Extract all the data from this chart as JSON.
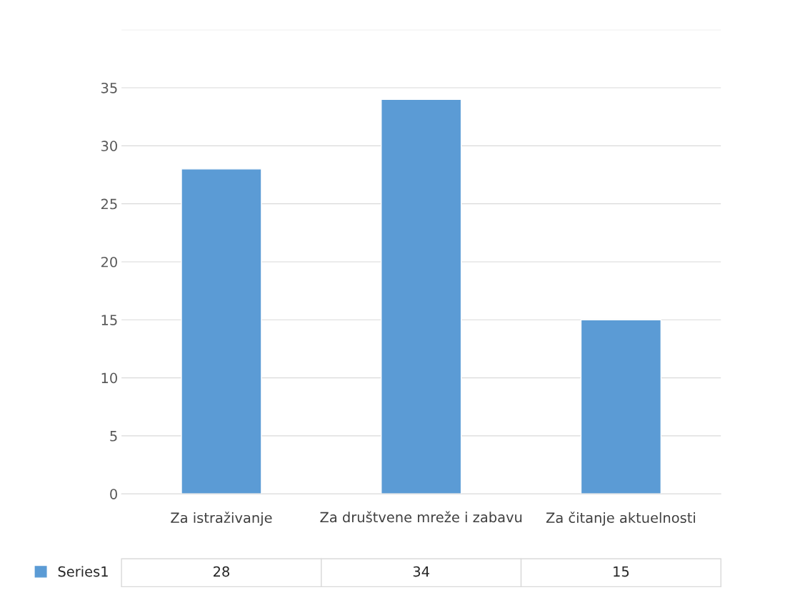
{
  "chart_data": {
    "type": "bar",
    "categories": [
      "Za istraživanje",
      "Za društvene mreže i zabavu",
      "Za čitanje aktuelnosti"
    ],
    "series": [
      {
        "name": "Series1",
        "color": "#5b9bd5",
        "values": [
          28,
          34,
          15
        ]
      }
    ],
    "ylim": [
      0,
      40
    ],
    "yticks": [
      0,
      5,
      10,
      15,
      20,
      25,
      30,
      35,
      {
        "value": 40,
        "label": null
      }
    ],
    "grid": "y",
    "legend": "bottom left",
    "data_labels": true
  }
}
